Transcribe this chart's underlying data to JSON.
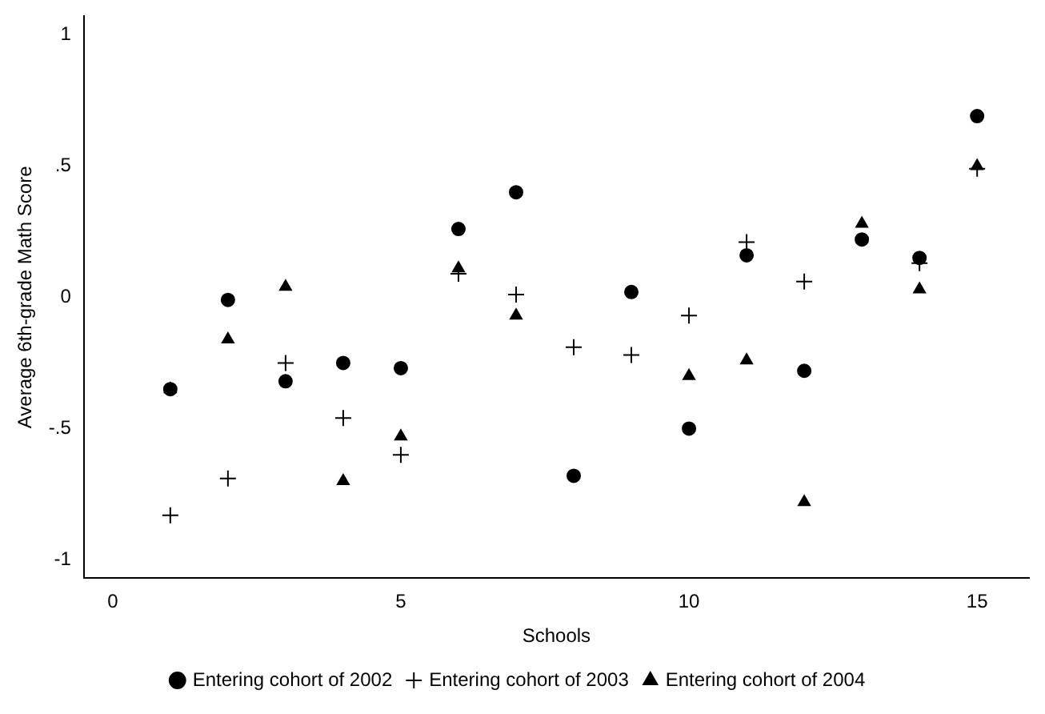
{
  "chart_data": {
    "type": "scatter",
    "xlabel": "Schools",
    "ylabel": "Average 6th-grade Math Score",
    "x": [
      1,
      2,
      3,
      4,
      5,
      6,
      7,
      8,
      9,
      10,
      11,
      12,
      13,
      14,
      15
    ],
    "series": [
      {
        "name": "Entering cohort of 2002",
        "color": "#000000",
        "marker": "circle",
        "values": [
          -0.35,
          -0.01,
          -0.32,
          -0.25,
          -0.27,
          0.26,
          0.4,
          -0.68,
          0.02,
          -0.5,
          0.16,
          -0.28,
          0.22,
          0.15,
          0.69
        ]
      },
      {
        "name": "Entering cohort of 2003",
        "color": "#000000",
        "marker": "cross",
        "values": [
          -0.83,
          -0.69,
          -0.25,
          -0.46,
          -0.6,
          0.09,
          0.01,
          -0.19,
          -0.22,
          -0.07,
          0.21,
          0.06,
          null,
          0.13,
          0.49
        ]
      },
      {
        "name": "Entering cohort of 2004",
        "color": "#000000",
        "marker": "triangle",
        "values": [
          -0.35,
          -0.16,
          0.04,
          -0.7,
          -0.53,
          0.11,
          -0.07,
          null,
          null,
          -0.3,
          -0.24,
          -0.78,
          0.28,
          0.03,
          0.5
        ]
      }
    ],
    "xlim": [
      -0.5,
      15.9
    ],
    "xticks": [
      0,
      5,
      10,
      15
    ],
    "ylim": [
      -1.07,
      1.07
    ],
    "yticks": [
      {
        "value": -1,
        "label": "-1"
      },
      {
        "value": -0.5,
        "label": "-.5"
      },
      0,
      {
        "value": 0.5,
        "label": ".5"
      },
      1
    ],
    "grid": false,
    "legend": "bottom"
  }
}
